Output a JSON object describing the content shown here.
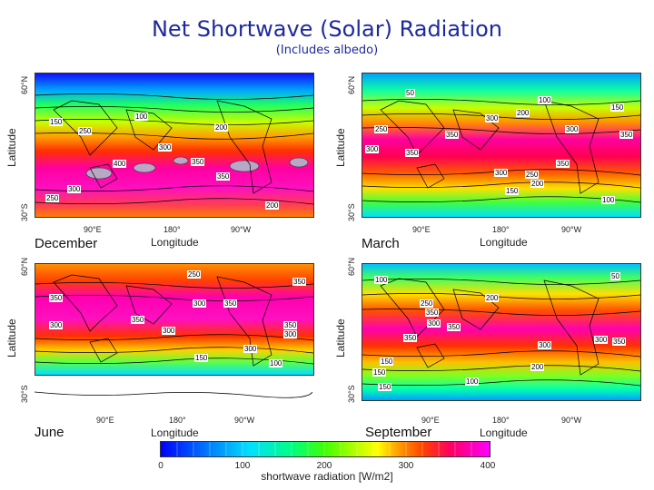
{
  "title": "Net Shortwave (Solar) Radiation",
  "subtitle": "(Includes albedo)",
  "panels": [
    {
      "season": "December",
      "ylabel": "Latitude",
      "xlabel": "Longitude",
      "lat_ticks": [
        "60°N",
        "30°S"
      ],
      "lon_ticks": [
        "90°E",
        "180°",
        "90°W"
      ],
      "contours": [
        "150",
        "250",
        "200",
        "300",
        "100",
        "400",
        "350",
        "350",
        "300",
        "250",
        "200"
      ]
    },
    {
      "season": "March",
      "ylabel": "Latitude",
      "xlabel": "Longitude",
      "lat_ticks": [
        "60°N",
        "30°S"
      ],
      "lon_ticks": [
        "90°E",
        "180°",
        "90°W"
      ],
      "contours": [
        "50",
        "100",
        "150",
        "200",
        "250",
        "300",
        "350",
        "350",
        "300",
        "250",
        "200",
        "150",
        "100",
        "350",
        "300",
        "350",
        "300"
      ]
    },
    {
      "season": "June",
      "ylabel": "Latitude",
      "xlabel": "Longitude",
      "lat_ticks": [
        "60°N",
        "30°S"
      ],
      "lon_ticks": [
        "90°E",
        "180°",
        "90°W"
      ],
      "contours": [
        "250",
        "350",
        "300",
        "350",
        "350",
        "300",
        "300",
        "350",
        "300",
        "350",
        "300",
        "150",
        "100"
      ]
    },
    {
      "season": "September",
      "ylabel": "Latitude",
      "xlabel": "Longitude",
      "lat_ticks": [
        "60°N",
        "30°S"
      ],
      "lon_ticks": [
        "90°E",
        "180°",
        "90°W"
      ],
      "contours": [
        "100",
        "50",
        "250",
        "350",
        "200",
        "300",
        "300",
        "350",
        "350",
        "300",
        "350",
        "150",
        "200",
        "150",
        "100",
        "150"
      ]
    }
  ],
  "colorbar": {
    "ticks": [
      "0",
      "100",
      "200",
      "300",
      "400"
    ],
    "label": "shortwave radiation [W/m2]",
    "range": [
      0,
      400
    ],
    "colors": [
      "#0000ff",
      "#00e0ff",
      "#40ff00",
      "#ffff00",
      "#ff4000",
      "#ff00ff"
    ]
  },
  "colors": {
    "title": "#1e2a9c",
    "land_contour": "#000000"
  }
}
